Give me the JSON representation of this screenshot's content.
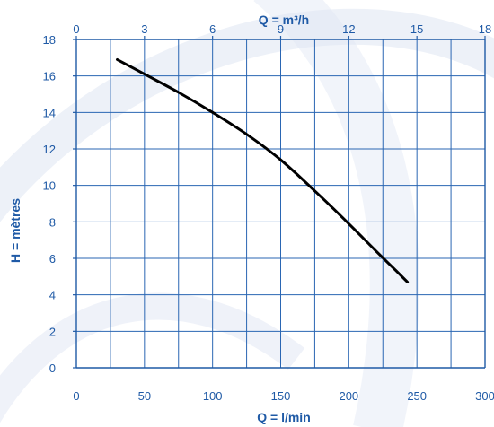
{
  "chart_data": {
    "type": "line",
    "title": "",
    "xlabel": "Q = l/min",
    "x2label": "Q = m³/h",
    "ylabel": "H = mètres",
    "xlim": [
      0,
      300
    ],
    "x2lim": [
      0,
      18
    ],
    "ylim": [
      0,
      18
    ],
    "x_ticks": [
      0,
      50,
      100,
      150,
      200,
      250,
      300
    ],
    "x2_ticks": [
      0,
      3,
      6,
      9,
      12,
      15,
      18
    ],
    "y_ticks": [
      0,
      2,
      4,
      6,
      8,
      10,
      12,
      14,
      16,
      18
    ],
    "grid": true,
    "series": [
      {
        "x": [
          30,
          50,
          75,
          100,
          125,
          150,
          175,
          200,
          220,
          235,
          243
        ],
        "y": [
          16.9,
          16.1,
          15.1,
          14.0,
          12.8,
          11.4,
          9.7,
          7.9,
          6.4,
          5.3,
          4.7
        ]
      }
    ]
  },
  "colors": {
    "axis": "#1f5aa6",
    "grid": "#2a66b3",
    "curve": "#000000",
    "background_swirl": "#dfe6f3"
  }
}
